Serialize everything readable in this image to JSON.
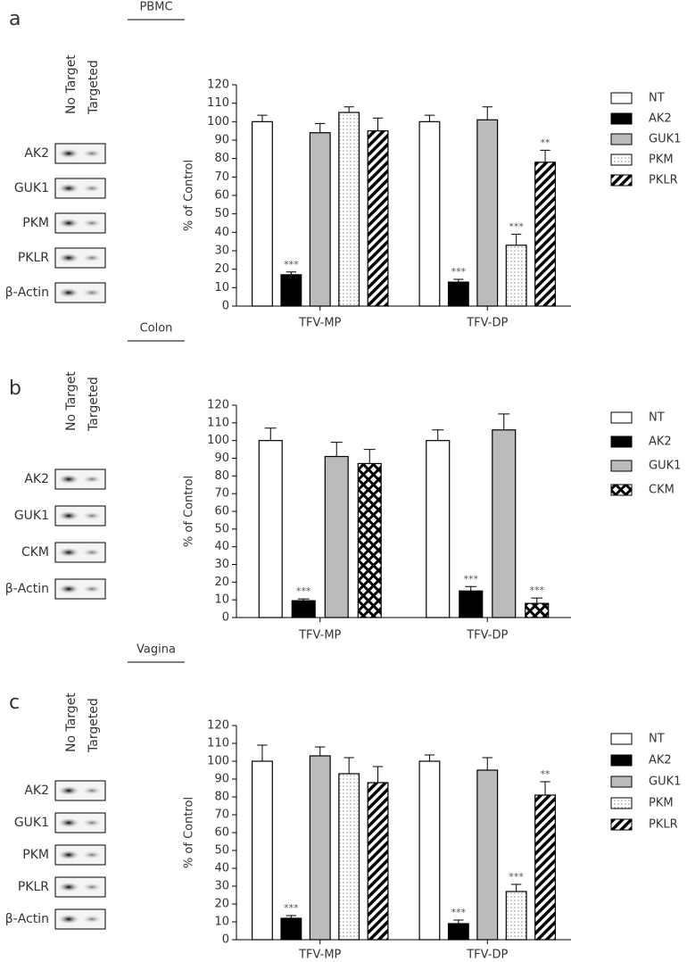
{
  "chart_data": [
    {
      "type": "bar",
      "panel": "a",
      "tissue": "PBMC",
      "blot": {
        "columns": [
          "No Target",
          "Targeted"
        ],
        "rows": [
          "AK2",
          "GUK1",
          "PKM",
          "PKLR",
          "β-Actin"
        ]
      },
      "ylabel": "% of Control",
      "categories": [
        "TFV-MP",
        "TFV-DP"
      ],
      "series": [
        {
          "name": "NT",
          "color": "#ffffff",
          "pattern": "solid",
          "values": [
            100,
            100
          ],
          "errors": [
            3.5,
            3.5
          ],
          "marks": [
            null,
            null
          ]
        },
        {
          "name": "AK2",
          "color": "#000000",
          "pattern": "solid",
          "values": [
            17,
            13
          ],
          "errors": [
            1.5,
            1.5
          ],
          "marks": [
            "***",
            "***"
          ]
        },
        {
          "name": "GUK1",
          "color": "#bbbbbb",
          "pattern": "solid",
          "values": [
            94,
            101
          ],
          "errors": [
            5,
            7
          ],
          "marks": [
            null,
            null
          ]
        },
        {
          "name": "PKM",
          "color": "#ffffff",
          "pattern": "dots",
          "values": [
            105,
            33
          ],
          "errors": [
            3,
            6
          ],
          "marks": [
            null,
            "***"
          ]
        },
        {
          "name": "PKLR",
          "color": "#ffffff",
          "pattern": "hatch",
          "values": [
            95,
            78
          ],
          "errors": [
            7,
            6.5
          ],
          "marks": [
            null,
            "**"
          ]
        }
      ],
      "ylim": [
        0,
        120
      ],
      "yticks": [
        0,
        10,
        20,
        30,
        40,
        50,
        60,
        70,
        80,
        90,
        100,
        110,
        120
      ],
      "legend": "right"
    },
    {
      "type": "bar",
      "panel": "b",
      "tissue": "Colon",
      "blot": {
        "columns": [
          "No Target",
          "Targeted"
        ],
        "rows": [
          "AK2",
          "GUK1",
          "CKM",
          "β-Actin"
        ]
      },
      "ylabel": "% of Control",
      "categories": [
        "TFV-MP",
        "TFV-DP"
      ],
      "series": [
        {
          "name": "NT",
          "color": "#ffffff",
          "pattern": "solid",
          "values": [
            100,
            100
          ],
          "errors": [
            7,
            6
          ],
          "marks": [
            null,
            null
          ]
        },
        {
          "name": "AK2",
          "color": "#000000",
          "pattern": "solid",
          "values": [
            9.5,
            15
          ],
          "errors": [
            1,
            2.5
          ],
          "marks": [
            "***",
            "***"
          ]
        },
        {
          "name": "GUK1",
          "color": "#bbbbbb",
          "pattern": "solid",
          "values": [
            91,
            106
          ],
          "errors": [
            8,
            9
          ],
          "marks": [
            null,
            null
          ]
        },
        {
          "name": "CKM",
          "color": "#ffffff",
          "pattern": "crosshatch",
          "values": [
            87,
            8
          ],
          "errors": [
            8,
            3
          ],
          "marks": [
            null,
            "***"
          ]
        }
      ],
      "ylim": [
        0,
        120
      ],
      "yticks": [
        0,
        10,
        20,
        30,
        40,
        50,
        60,
        70,
        80,
        90,
        100,
        110,
        120
      ],
      "legend": "right"
    },
    {
      "type": "bar",
      "panel": "c",
      "tissue": "Vagina",
      "blot": {
        "columns": [
          "No Target",
          "Targeted"
        ],
        "rows": [
          "AK2",
          "GUK1",
          "PKM",
          "PKLR",
          "β-Actin"
        ]
      },
      "ylabel": "% of Control",
      "categories": [
        "TFV-MP",
        "TFV-DP"
      ],
      "series": [
        {
          "name": "NT",
          "color": "#ffffff",
          "pattern": "solid",
          "values": [
            100,
            100
          ],
          "errors": [
            9,
            3.5
          ],
          "marks": [
            null,
            null
          ]
        },
        {
          "name": "AK2",
          "color": "#000000",
          "pattern": "solid",
          "values": [
            12,
            9
          ],
          "errors": [
            1.5,
            2
          ],
          "marks": [
            "***",
            "***"
          ]
        },
        {
          "name": "GUK1",
          "color": "#bbbbbb",
          "pattern": "solid",
          "values": [
            103,
            95
          ],
          "errors": [
            5,
            7
          ],
          "marks": [
            null,
            null
          ]
        },
        {
          "name": "PKM",
          "color": "#ffffff",
          "pattern": "dots",
          "values": [
            93,
            27
          ],
          "errors": [
            9,
            4
          ],
          "marks": [
            null,
            "***"
          ]
        },
        {
          "name": "PKLR",
          "color": "#ffffff",
          "pattern": "hatch",
          "values": [
            88,
            81
          ],
          "errors": [
            9,
            7.5
          ],
          "marks": [
            null,
            "**"
          ]
        }
      ],
      "ylim": [
        0,
        120
      ],
      "yticks": [
        0,
        10,
        20,
        30,
        40,
        50,
        60,
        70,
        80,
        90,
        100,
        110,
        120
      ],
      "legend": "right"
    }
  ]
}
